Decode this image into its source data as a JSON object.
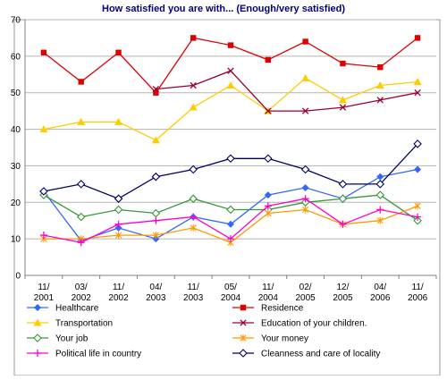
{
  "chart_data": {
    "type": "line",
    "title": "How satisfied you are with... (Enough/very satisfied)",
    "xlabel": "",
    "ylabel": "",
    "ylim": [
      0,
      70
    ],
    "yticks": [
      0,
      10,
      20,
      30,
      40,
      50,
      60,
      70
    ],
    "grid": "horizontal",
    "legend": "bottom",
    "categories": [
      [
        "11/",
        "2001"
      ],
      [
        "03/",
        "2002"
      ],
      [
        "11/",
        "2002"
      ],
      [
        "04/",
        "2003"
      ],
      [
        "11/",
        "2003"
      ],
      [
        "05/",
        "2004"
      ],
      [
        "11/",
        "2004"
      ],
      [
        "02/",
        "2005"
      ],
      [
        "12/",
        "2005"
      ],
      [
        "04/",
        "2006"
      ],
      [
        "11/",
        "2006"
      ]
    ],
    "series": [
      {
        "name": "Healthcare",
        "color": "#3366ff",
        "marker": "diamond",
        "values": [
          23,
          9.5,
          13,
          10,
          16,
          14,
          22,
          24,
          21,
          27,
          29
        ]
      },
      {
        "name": "Residence",
        "color": "#dd0000",
        "marker": "square",
        "values": [
          61,
          53,
          61,
          50,
          65,
          63,
          59,
          64,
          58,
          57,
          65
        ]
      },
      {
        "name": "Transportation",
        "color": "#ffcc00",
        "marker": "triangle",
        "values": [
          40,
          42,
          42,
          37,
          46,
          52,
          45,
          54,
          48,
          52,
          53
        ]
      },
      {
        "name": "Education of your children.",
        "color": "#990033",
        "marker": "x",
        "values": [
          null,
          null,
          null,
          51,
          52,
          56,
          45,
          45,
          46,
          48,
          50
        ]
      },
      {
        "name": "Your job",
        "color": "#339933",
        "marker": "diamond-open",
        "values": [
          22,
          16,
          18,
          17,
          21,
          18,
          18,
          20,
          21,
          22,
          15
        ]
      },
      {
        "name": "Your money",
        "color": "#ff9900",
        "marker": "star",
        "values": [
          10,
          10,
          11,
          11,
          13,
          9,
          17,
          18,
          14,
          15,
          19
        ]
      },
      {
        "name": "Political life in country",
        "color": "#ff00cc",
        "marker": "plus",
        "values": [
          11,
          9,
          14,
          15,
          16,
          10,
          19,
          21,
          14,
          18,
          16
        ]
      },
      {
        "name": "Cleanness and care of locality",
        "color": "#000066",
        "marker": "diamond-open",
        "values": [
          23,
          25,
          21,
          27,
          29,
          32,
          32,
          29,
          25,
          25,
          36
        ]
      }
    ]
  }
}
